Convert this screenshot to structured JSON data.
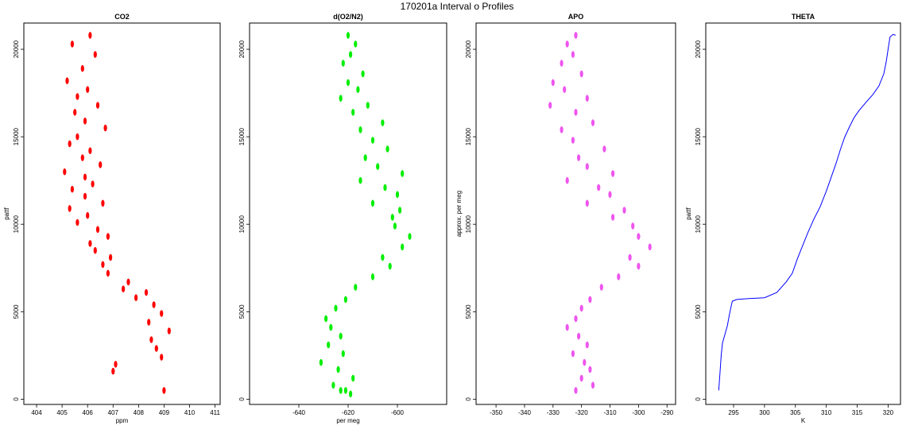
{
  "page_title": "170201a   Interval o Profiles",
  "chart_data": [
    {
      "type": "scatter",
      "title": "CO2",
      "xlabel": "ppm",
      "ylabel": "pattf",
      "xlim": [
        403.5,
        411.2
      ],
      "ylim": [
        -300,
        21500
      ],
      "xticks": [
        404,
        405,
        406,
        407,
        408,
        409,
        410,
        411
      ],
      "yticks": [
        0,
        5000,
        10000,
        15000,
        20000
      ],
      "color": "#ff0000",
      "series": [
        {
          "x": [
            406.1,
            405.4,
            406.3,
            405.8,
            405.2,
            406.0,
            405.6,
            406.4,
            405.5,
            405.9,
            406.7,
            405.6,
            405.3,
            406.1,
            405.8,
            406.5,
            405.1,
            405.9,
            406.2,
            405.4,
            405.9,
            406.6,
            405.3,
            406.0,
            405.6,
            406.4,
            406.8,
            406.1,
            406.3,
            406.9,
            406.6,
            406.8,
            407.6,
            407.4,
            408.3,
            407.9,
            408.6,
            408.9,
            408.4,
            409.2,
            408.5,
            408.7,
            408.9,
            407.1,
            407.0,
            409.0
          ],
          "y": [
            20800,
            20300,
            19700,
            18900,
            18200,
            17700,
            17300,
            16800,
            16400,
            15900,
            15500,
            15000,
            14600,
            14200,
            13800,
            13400,
            13000,
            12700,
            12300,
            12000,
            11600,
            11200,
            10900,
            10500,
            10100,
            9700,
            9300,
            8900,
            8500,
            8100,
            7700,
            7200,
            6700,
            6300,
            6100,
            5800,
            5400,
            4900,
            4400,
            3900,
            3400,
            2900,
            2400,
            2000,
            1600,
            500
          ]
        }
      ]
    },
    {
      "type": "scatter",
      "title": "d(O2/N2)",
      "xlabel": "per meg",
      "ylabel": "",
      "xlim": [
        -660,
        -580
      ],
      "ylim": [
        -300,
        21500
      ],
      "xticks": [
        -640,
        -620,
        -600
      ],
      "yticks": [
        0,
        5000,
        10000,
        15000,
        20000
      ],
      "color": "#00ee00",
      "series": [
        {
          "x": [
            -620,
            -617,
            -619,
            -622,
            -614,
            -620,
            -616,
            -623,
            -612,
            -618,
            -606,
            -615,
            -610,
            -604,
            -613,
            -608,
            -598,
            -615,
            -605,
            -600,
            -610,
            -599,
            -602,
            -601,
            -595,
            -598,
            -606,
            -603,
            -610,
            -617,
            -621,
            -625,
            -629,
            -627,
            -623,
            -628,
            -622,
            -631,
            -624,
            -618,
            -626,
            -623,
            -619,
            -621
          ],
          "y": [
            20800,
            20300,
            19700,
            19200,
            18600,
            18100,
            17700,
            17200,
            16800,
            16400,
            15800,
            15400,
            14800,
            14300,
            13800,
            13300,
            12900,
            12500,
            12100,
            11700,
            11200,
            10800,
            10400,
            9900,
            9300,
            8700,
            8100,
            7600,
            7000,
            6400,
            5700,
            5200,
            4600,
            4100,
            3600,
            3100,
            2600,
            2100,
            1700,
            1200,
            800,
            500,
            300,
            500
          ]
        }
      ]
    },
    {
      "type": "scatter",
      "title": "APO",
      "xlabel": "",
      "ylabel": "approx. per meg",
      "xlim": [
        -357,
        -287
      ],
      "ylim": [
        -300,
        21500
      ],
      "xticks": [
        -350,
        -340,
        -330,
        -320,
        -310,
        -300,
        -290
      ],
      "yticks": [
        0,
        5000,
        10000,
        15000,
        20000
      ],
      "color": "#ee55ee",
      "series": [
        {
          "x": [
            -322,
            -325,
            -323,
            -327,
            -320,
            -330,
            -326,
            -318,
            -331,
            -322,
            -316,
            -327,
            -323,
            -312,
            -321,
            -318,
            -309,
            -325,
            -314,
            -310,
            -318,
            -305,
            -309,
            -302,
            -300,
            -296,
            -303,
            -300,
            -307,
            -313,
            -317,
            -320,
            -322,
            -325,
            -321,
            -318,
            -323,
            -319,
            -317,
            -320,
            -316,
            -322
          ],
          "y": [
            20800,
            20300,
            19700,
            19200,
            18600,
            18100,
            17700,
            17200,
            16800,
            16400,
            15800,
            15400,
            14800,
            14300,
            13800,
            13300,
            12900,
            12500,
            12100,
            11700,
            11200,
            10800,
            10400,
            9900,
            9300,
            8700,
            8100,
            7600,
            7000,
            6400,
            5700,
            5200,
            4600,
            4100,
            3600,
            3100,
            2600,
            2100,
            1700,
            1200,
            800,
            500
          ]
        }
      ]
    },
    {
      "type": "line",
      "title": "THETA",
      "xlabel": "K",
      "ylabel": "pattf",
      "xlim": [
        290.5,
        322
      ],
      "ylim": [
        -300,
        21500
      ],
      "xticks": [
        295,
        300,
        305,
        310,
        315,
        320
      ],
      "yticks": [
        0,
        5000,
        10000,
        15000,
        20000
      ],
      "color": "#0000ff",
      "series": [
        {
          "x": [
            292.6,
            292.8,
            293.0,
            293.2,
            293.6,
            294.0,
            294.3,
            294.6,
            294.8,
            295.5,
            297.5,
            300.0,
            302.0,
            303.5,
            304.5,
            305.3,
            306.2,
            307.0,
            308.0,
            309.0,
            310.0,
            310.8,
            311.6,
            312.3,
            313.0,
            313.8,
            314.5,
            315.3,
            316.5,
            317.5,
            318.5,
            319.3,
            319.7,
            320.0,
            320.3,
            320.8,
            321.2
          ],
          "y": [
            500,
            1500,
            2500,
            3200,
            3700,
            4200,
            4800,
            5300,
            5600,
            5700,
            5750,
            5800,
            6100,
            6700,
            7200,
            8000,
            8800,
            9500,
            10300,
            11000,
            11900,
            12700,
            13500,
            14300,
            15000,
            15600,
            16100,
            16500,
            17000,
            17400,
            17900,
            18600,
            19300,
            20000,
            20700,
            20850,
            20800
          ]
        }
      ]
    }
  ]
}
